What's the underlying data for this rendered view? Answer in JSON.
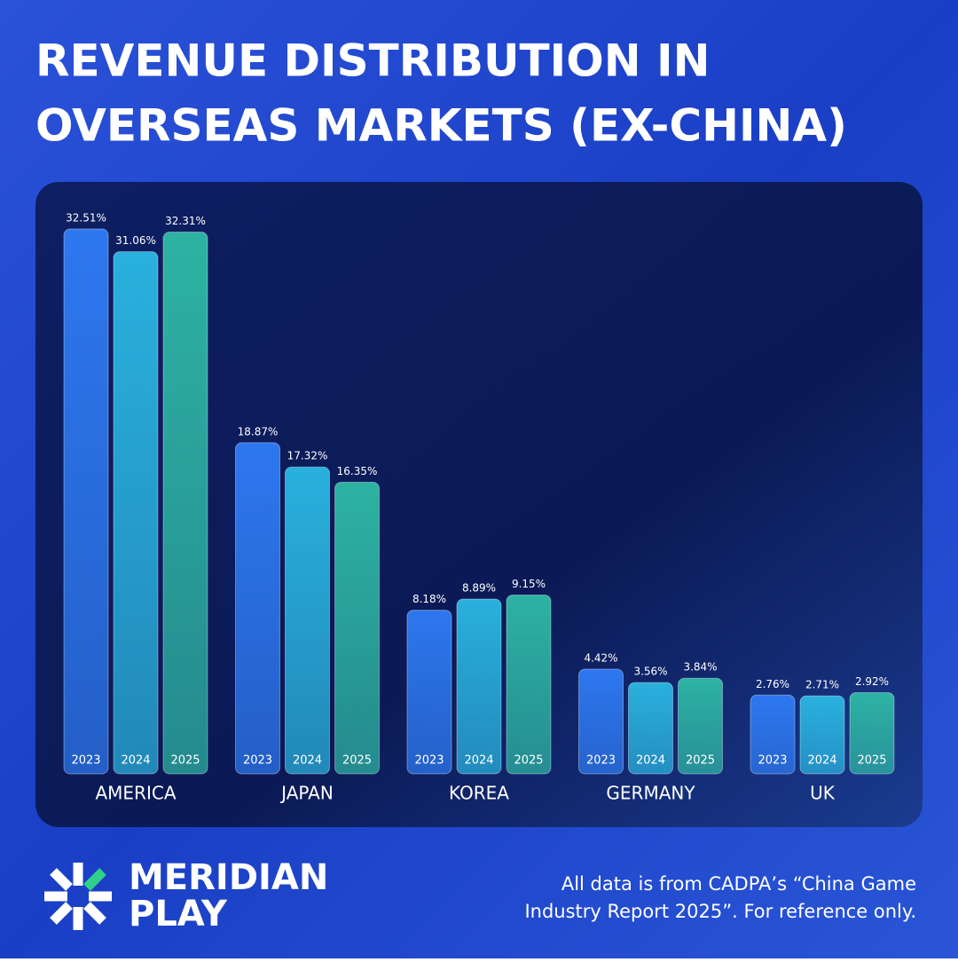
{
  "chart_data": {
    "type": "bar",
    "title": [
      "REVENUE DISTRIBUTION IN",
      "OVERSEAS MARKETS (EX-CHINA)"
    ],
    "categories": [
      "AMERICA",
      "JAPAN",
      "KOREA",
      "GERMANY",
      "UK"
    ],
    "series": [
      {
        "name": "2023",
        "color": "#2f7cf6",
        "values": [
          32.51,
          18.87,
          8.18,
          4.42,
          2.76
        ],
        "value_labels": [
          "32.51%",
          "18.87%",
          "8.18%",
          "4.42%",
          "2.76%"
        ]
      },
      {
        "name": "2024",
        "color": "#2bb8e3",
        "values": [
          31.06,
          17.32,
          8.89,
          3.56,
          2.71
        ],
        "value_labels": [
          "31.06%",
          "17.32%",
          "8.89%",
          "3.56%",
          "2.71%"
        ]
      },
      {
        "name": "2025",
        "color": "#2fbaa6",
        "values": [
          32.31,
          16.35,
          9.15,
          3.84,
          2.92
        ],
        "value_labels": [
          "32.31%",
          "16.35%",
          "9.15%",
          "3.84%",
          "2.92%"
        ]
      }
    ]
  },
  "brand": {
    "line1": "MERIDIAN",
    "line2": "PLAY"
  },
  "footnote": [
    "All data is from CADPA’s “China Game",
    "Industry Report 2025”. For reference only."
  ]
}
